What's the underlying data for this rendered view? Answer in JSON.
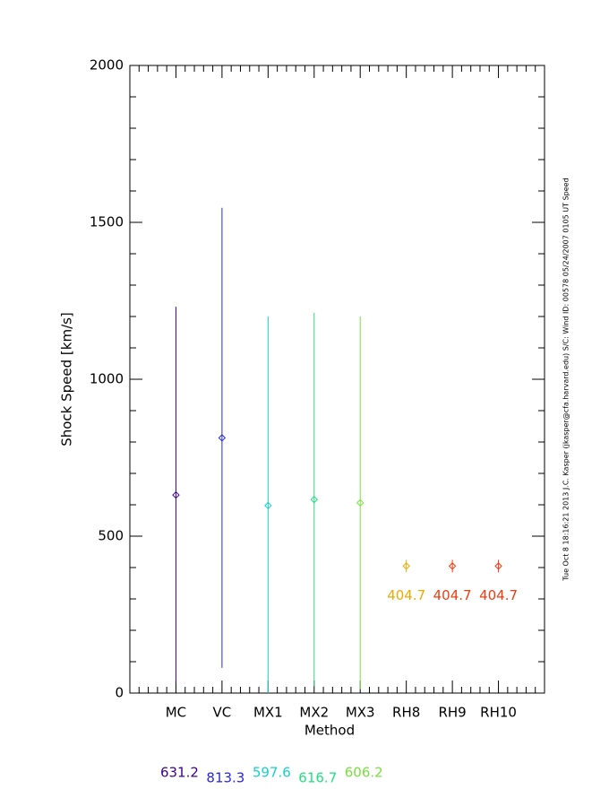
{
  "chart_data": {
    "type": "errorbar",
    "side_note": "Tue Oct  8 18:16:21 2013  J.C. Kasper (jkasper@cfa.harvard.edu)  S/C: Wind ID: 00578 05/24/2007  0105 UT Speed",
    "x_label": "Method",
    "y_label": "Shock Speed [km/s]",
    "categories": [
      "MC",
      "VC",
      "MX1",
      "MX2",
      "MX3",
      "RH8",
      "RH9",
      "RH10"
    ],
    "values": [
      631.2,
      813.3,
      597.6,
      616.7,
      606.2,
      404.7,
      404.7,
      404.7
    ],
    "errors": [
      600,
      733,
      603,
      595,
      594,
      20,
      20,
      20
    ],
    "colors": [
      "#3a0090",
      "#2828d8",
      "#18d0c8",
      "#20e080",
      "#78e040",
      "#f0a800",
      "#f03a10",
      "#f03a10"
    ],
    "ylim": [
      0,
      2000
    ],
    "yticks": [
      0,
      500,
      1000,
      1500,
      2000
    ],
    "yminorticks": [
      0,
      100,
      200,
      300,
      400,
      500,
      600,
      700,
      800,
      900,
      1000,
      1100,
      1200,
      1300,
      1400,
      1500,
      1600,
      1700,
      1800,
      1900,
      2000
    ]
  }
}
